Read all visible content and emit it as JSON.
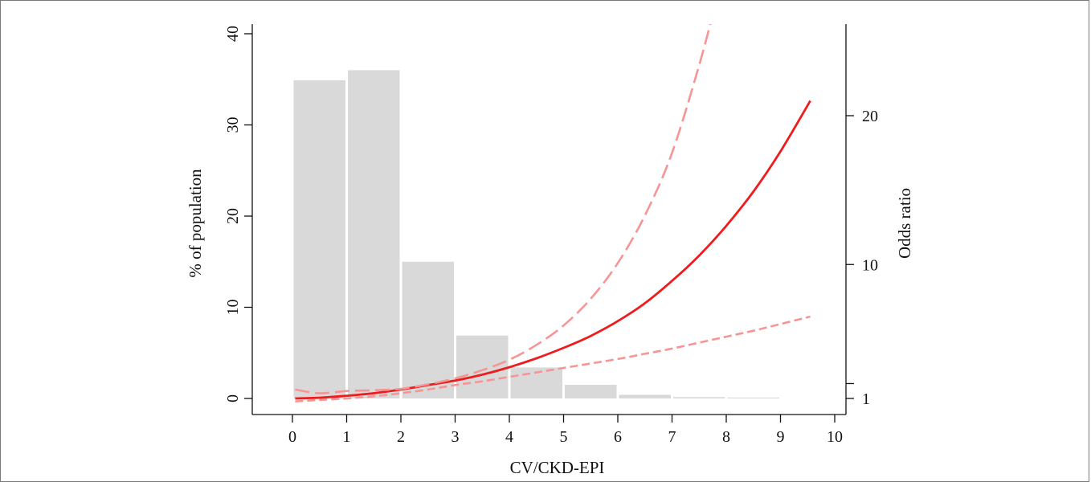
{
  "chart_data": {
    "type": "bar",
    "title": "",
    "xlabel": "CV/CKD-EPI",
    "ylabel": "% of population",
    "y2label": "Odds ratio",
    "xlim": [
      0,
      10
    ],
    "ylim": [
      0,
      40
    ],
    "y2lim": [
      1,
      21
    ],
    "x_ticks": [
      "0",
      "1",
      "2",
      "3",
      "4",
      "5",
      "6",
      "7",
      "8",
      "9",
      "10"
    ],
    "y_ticks": [
      "0",
      "10",
      "20",
      "30",
      "40"
    ],
    "y2_ticks": [
      "1",
      "10",
      "20"
    ],
    "bars": {
      "bin_edges": [
        0,
        1,
        2,
        3,
        4,
        5,
        6,
        7,
        8,
        9
      ],
      "values": [
        34.9,
        36.0,
        15.0,
        6.9,
        3.4,
        1.5,
        0.4,
        0.15,
        0.1
      ],
      "color": "#d9d9d9"
    },
    "series": [
      {
        "name": "",
        "style": "solid",
        "color": "#ee1c1c",
        "x": [
          0.05,
          0.5,
          1.0,
          1.5,
          2.0,
          2.5,
          3.0,
          3.5,
          4.0,
          4.5,
          5.0,
          5.5,
          6.0,
          6.5,
          7.0,
          7.5,
          8.0,
          8.5,
          9.0,
          9.55
        ],
        "y": [
          1.0,
          1.05,
          1.18,
          1.35,
          1.6,
          1.9,
          2.2,
          2.6,
          3.1,
          3.7,
          4.4,
          5.2,
          6.2,
          7.4,
          8.9,
          10.6,
          12.6,
          14.9,
          17.6,
          21.0
        ]
      },
      {
        "name": "",
        "style": "long-dash",
        "color": "#f59595",
        "x": [
          0.05,
          0.5,
          1.0,
          1.5,
          2.0,
          2.5,
          3.0,
          3.5,
          4.0,
          4.5,
          5.0,
          5.5,
          6.0,
          6.5,
          7.0,
          7.5,
          7.8
        ],
        "y": [
          1.6,
          1.35,
          1.5,
          1.55,
          1.65,
          1.95,
          2.35,
          2.9,
          3.6,
          4.6,
          5.9,
          7.7,
          10.1,
          13.3,
          17.5,
          23.4,
          27.5
        ]
      },
      {
        "name": "",
        "style": "dash",
        "color": "#f59595",
        "x": [
          0.05,
          0.5,
          1.0,
          1.5,
          2.0,
          2.5,
          3.0,
          3.5,
          4.0,
          4.5,
          5.0,
          5.5,
          6.0,
          6.5,
          7.0,
          7.5,
          8.0,
          8.5,
          9.0,
          9.55
        ],
        "y": [
          0.8,
          0.9,
          1.0,
          1.15,
          1.35,
          1.6,
          1.9,
          2.15,
          2.45,
          2.75,
          3.05,
          3.35,
          3.65,
          4.0,
          4.35,
          4.75,
          5.15,
          5.55,
          6.0,
          6.5
        ]
      }
    ],
    "grid": false,
    "legend": "none"
  }
}
